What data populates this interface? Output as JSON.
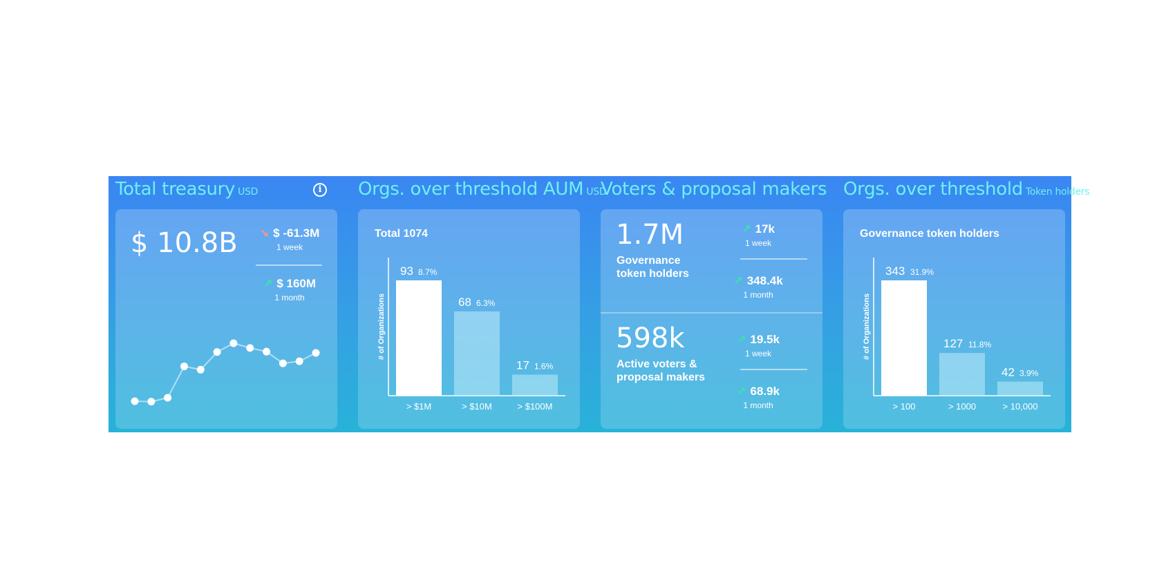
{
  "treasury": {
    "title": "Total treasury",
    "suffix": "USD",
    "info_label": "i",
    "value": "$ 10.8B",
    "week": {
      "value": "$ -61.3M",
      "period": "1 week",
      "direction": "down"
    },
    "month": {
      "value": "$ 160M",
      "period": "1 month",
      "direction": "up"
    },
    "sparkline": [
      1.0,
      0.8,
      2.7,
      18.0,
      16.4,
      25.0,
      29.3,
      27.0,
      25.2,
      19.5,
      20.5,
      24.6
    ]
  },
  "aum": {
    "title": "Orgs. over threshold AUM",
    "suffix": "USD",
    "card_title": "Total 1074",
    "chart_data": {
      "type": "bar",
      "ylabel": "# of Organizations",
      "categories": [
        "> $1M",
        "> $10M",
        "> $100M"
      ],
      "values": [
        93,
        68,
        17
      ],
      "percent_labels": [
        "8.7%",
        "6.3%",
        "1.6%"
      ],
      "ylim": [
        0,
        93
      ]
    }
  },
  "voters": {
    "title": "Voters & proposal makers",
    "holders": {
      "value": "1.7M",
      "label_line1": "Governance",
      "label_line2": "token holders",
      "week": {
        "value": "17k",
        "period": "1 week"
      },
      "month": {
        "value": "348.4k",
        "period": "1 month"
      }
    },
    "active": {
      "value": "598k",
      "label_line1": "Active voters &",
      "label_line2": "proposal makers",
      "week": {
        "value": "19.5k",
        "period": "1 week"
      },
      "month": {
        "value": "68.9k",
        "period": "1 month"
      }
    }
  },
  "tokens": {
    "title": "Orgs. over threshold",
    "suffix": "Token holders",
    "card_title": "Governance token holders",
    "chart_data": {
      "type": "bar",
      "ylabel": "# of Organizations",
      "categories": [
        "> 100",
        "> 1000",
        "> 10,000"
      ],
      "values": [
        343,
        127,
        42
      ],
      "percent_labels": [
        "31.9%",
        "11.8%",
        "3.9%"
      ],
      "ylim": [
        0,
        343
      ]
    }
  },
  "colors": {
    "title_accent": "#6ff0f2",
    "up_arrow": "#39e6a6",
    "down_arrow": "#ff9a7a"
  }
}
